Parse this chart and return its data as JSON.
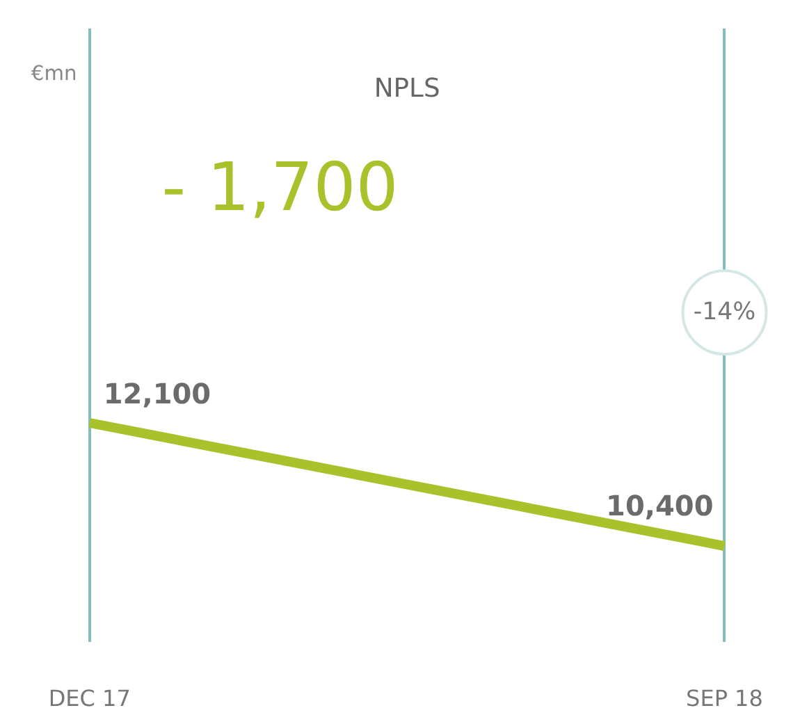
{
  "chart_data": {
    "type": "line",
    "title": "NPLS",
    "categories": [
      "DEC 17",
      "SEP 18"
    ],
    "series": [
      {
        "color": "#a9c12a",
        "values": [
          12100,
          10400
        ],
        "value_labels": [
          "12,100",
          "10,400"
        ]
      }
    ],
    "grid": "x",
    "tick_labels": "x",
    "annotations": [
      "- 1,700",
      "-14%",
      "€mn"
    ]
  }
}
